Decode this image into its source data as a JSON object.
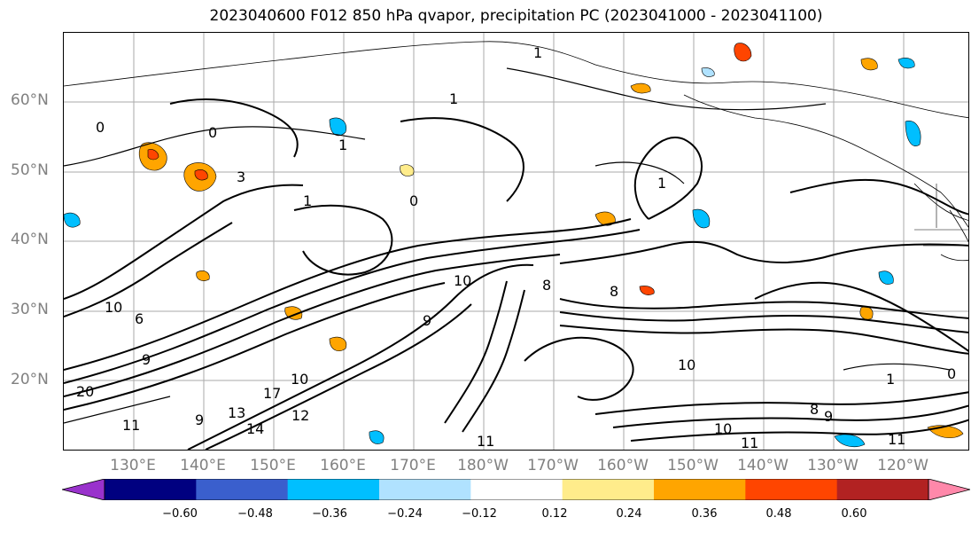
{
  "title": "2023040600 F012 850 hPa qvapor, precipitation PC (2023041000 - 2023041100)",
  "map": {
    "lat_labels": [
      "60°N",
      "50°N",
      "40°N",
      "30°N",
      "20°N"
    ],
    "lon_labels": [
      "130°E",
      "140°E",
      "150°E",
      "160°E",
      "170°E",
      "180°W",
      "170°W",
      "160°W",
      "150°W",
      "140°W",
      "130°W",
      "120°W"
    ],
    "contour_labels": [
      "0",
      "0",
      "3",
      "0",
      "1",
      "1",
      "1",
      "1",
      "1",
      "10",
      "6",
      "9",
      "11",
      "20",
      "9",
      "13",
      "14",
      "12",
      "10",
      "17",
      "10",
      "11",
      "9",
      "8",
      "8",
      "10",
      "11",
      "11",
      "8",
      "9",
      "10",
      "1",
      "0"
    ]
  },
  "colorbar": {
    "levels": [
      "-0.60",
      "−0.48",
      "−0.36",
      "−0.24",
      "−0.12",
      "0.12",
      "0.24",
      "0.36",
      "0.48",
      "0.60"
    ],
    "tick_labels": [
      "−0.60",
      "−0.48",
      "−0.36",
      "−0.24",
      "−0.12",
      "0.12",
      "0.24",
      "0.36",
      "0.48",
      "0.60"
    ],
    "colors": [
      "#9932cc",
      "#000080",
      "#3a5fcd",
      "#00bfff",
      "#b0e2ff",
      "#ffffff",
      "#ffec8b",
      "#ffa500",
      "#ff4500",
      "#b22222",
      "#ff88aa"
    ]
  }
}
